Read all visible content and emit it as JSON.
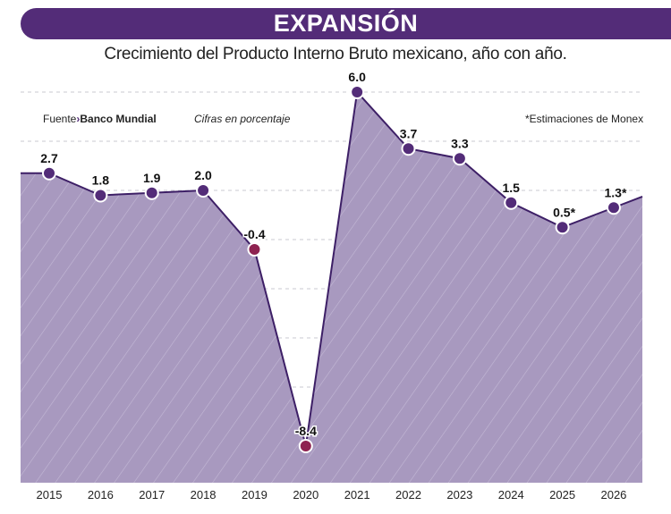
{
  "header": {
    "title": "EXPANSIÓN",
    "subtitle": "Crecimiento del Producto Interno Bruto mexicano, año con año."
  },
  "notes": {
    "source_label": "Fuente",
    "source_arrow": "›",
    "source_name": "Banco Mundial",
    "units": "Cifras en porcentaje",
    "estimates": "*Estimaciones de Monex"
  },
  "colors": {
    "banner": "#532c78",
    "fill": "#a899bf",
    "line": "#3d1f66",
    "positive_dot": "#532c78",
    "negative_dot": "#8e2250"
  },
  "chart_data": {
    "type": "area",
    "title": "Crecimiento del Producto Interno Bruto mexicano, año con año.",
    "categories": [
      "2015",
      "2016",
      "2017",
      "2018",
      "2019",
      "2020",
      "2021",
      "2022",
      "2023",
      "2024",
      "2025",
      "2026"
    ],
    "values": [
      2.7,
      1.8,
      1.9,
      2.0,
      -0.4,
      -8.4,
      6.0,
      3.7,
      3.3,
      1.5,
      0.5,
      1.3
    ],
    "labels": [
      "2.7",
      "1.8",
      "1.9",
      "2.0",
      "-0.4",
      "-8.4",
      "6.0",
      "3.7",
      "3.3",
      "1.5",
      "0.5*",
      "1.3*"
    ],
    "ylim": [
      -9.9,
      6.0
    ],
    "grid": true,
    "ylabel": "",
    "xlabel": ""
  }
}
